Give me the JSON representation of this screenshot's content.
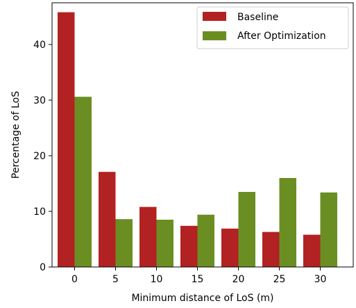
{
  "chart_data": {
    "type": "bar",
    "xlabel": "Minimum distance of LoS (m)",
    "ylabel": "Percentage of LoS",
    "categories": [
      "0",
      "5",
      "10",
      "15",
      "20",
      "25",
      "30"
    ],
    "ylim": [
      0,
      47.5
    ],
    "yticks": [
      0,
      10,
      20,
      30,
      40
    ],
    "grid": false,
    "legend_position": "top-right",
    "series": [
      {
        "name": "Baseline",
        "color": "#b22222",
        "values": [
          45.8,
          17.1,
          10.8,
          7.4,
          6.9,
          6.3,
          5.8
        ]
      },
      {
        "name": "After Optimization",
        "color": "#6b8e23",
        "values": [
          30.6,
          8.6,
          8.5,
          9.4,
          13.5,
          16.0,
          13.4
        ]
      }
    ]
  }
}
